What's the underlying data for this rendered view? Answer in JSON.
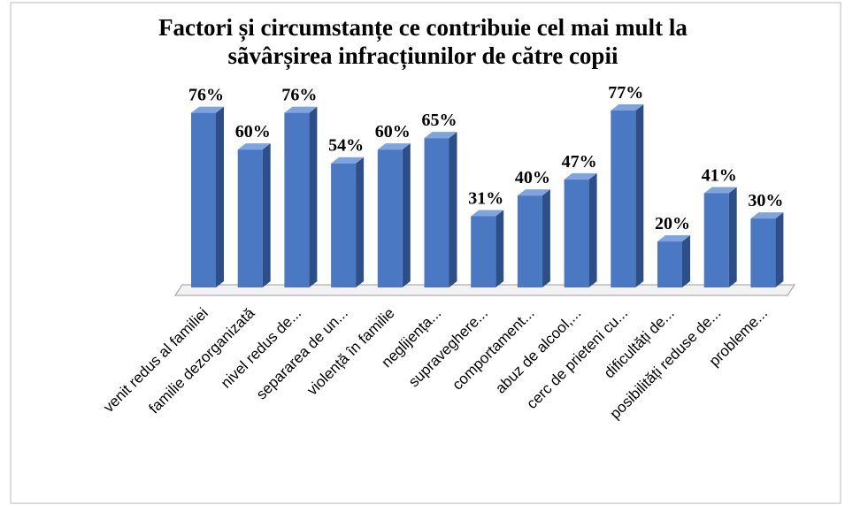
{
  "chart_data": {
    "type": "bar",
    "title": "Factori și circumstanțe ce contribuie cel mai mult la sãvârșirea infracțiunilor de către copii",
    "categories": [
      "venit redus al familiei",
      "familie dezorganizată",
      "nivel redus de...",
      "separarea de un...",
      "violență în familie",
      "neglijența...",
      "supraveghere...",
      "comportament...",
      "abuz de alcool,...",
      "cerc de prieteni cu...",
      "dificultăți de...",
      "posibilități reduse de...",
      "probleme..."
    ],
    "values": [
      76,
      60,
      76,
      54,
      60,
      65,
      31,
      40,
      47,
      77,
      20,
      41,
      30
    ],
    "value_labels": [
      "76%",
      "60%",
      "76%",
      "54%",
      "60%",
      "65%",
      "31%",
      "40%",
      "47%",
      "77%",
      "20%",
      "41%",
      "30%"
    ],
    "color": "#4a78c2"
  }
}
